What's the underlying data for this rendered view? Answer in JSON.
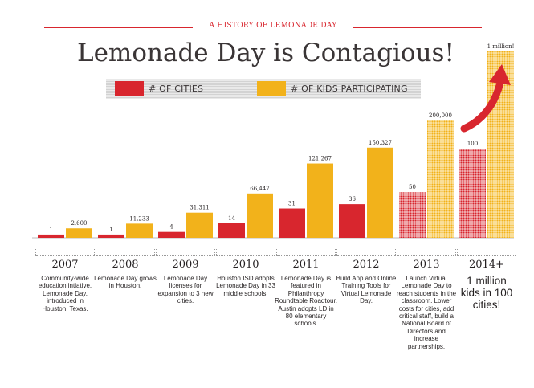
{
  "header": {
    "kicker": "A HISTORY OF LEMONADE DAY",
    "title": "Lemonade Day is Contagious!"
  },
  "legend": {
    "cities_label": "# OF CITIES",
    "kids_label": "# OF KIDS PARTICIPATING"
  },
  "colors": {
    "cities": "#d8262e",
    "kids": "#f2b21b",
    "arrow": "#d8262e",
    "text": "#231f20"
  },
  "timeline": [
    {
      "year": "2007",
      "text": "Community-wide education intiative, Lemonade Day, introduced in Houston, Texas."
    },
    {
      "year": "2008",
      "text": "Lemonade Day grows in Houston."
    },
    {
      "year": "2009",
      "text": "Lemonade Day licenses for expansion to 3 new cities."
    },
    {
      "year": "2010",
      "text": "Houston ISD adopts Lemonade Day in 33 middle schools."
    },
    {
      "year": "2011",
      "text": "Lemonade Day is featured in Philanthropy Roundtable Roadtour. Austin adopts LD in 80 elementary schools."
    },
    {
      "year": "2012",
      "text": "Build App and Online Training Tools for Virtual Lemonade Day."
    },
    {
      "year": "2013",
      "text": "Launch Virtual Lemonade Day to reach students in the classroom. Lower costs for cities, add critical staff, build a National Board of Directors and increase partnerships."
    },
    {
      "year": "2014+",
      "text": "1 million kids in 100 cities!"
    }
  ],
  "chart_data": {
    "type": "bar",
    "title": "Lemonade Day is Contagious!",
    "categories": [
      "2007",
      "2008",
      "2009",
      "2010",
      "2011",
      "2012",
      "2013",
      "2014+"
    ],
    "series": [
      {
        "name": "# OF CITIES",
        "values": [
          1,
          1,
          4,
          14,
          31,
          36,
          50,
          100
        ],
        "labels": [
          "1",
          "1",
          "4",
          "14",
          "31",
          "36",
          "50",
          "100"
        ],
        "projected": [
          false,
          false,
          false,
          false,
          false,
          false,
          true,
          true
        ]
      },
      {
        "name": "# OF KIDS PARTICIPATING",
        "values": [
          2600,
          11233,
          31311,
          66447,
          121267,
          150327,
          200000,
          1000000
        ],
        "labels": [
          "2,600",
          "11,233",
          "31,311",
          "66,447",
          "121,267",
          "150,327",
          "200,000",
          "1 million!"
        ],
        "projected": [
          false,
          false,
          false,
          false,
          false,
          false,
          true,
          true
        ]
      }
    ],
    "axes_shown": false,
    "grid": false,
    "legend_position": "top",
    "annotations": [
      "upward arrow toward 1 million!"
    ]
  }
}
